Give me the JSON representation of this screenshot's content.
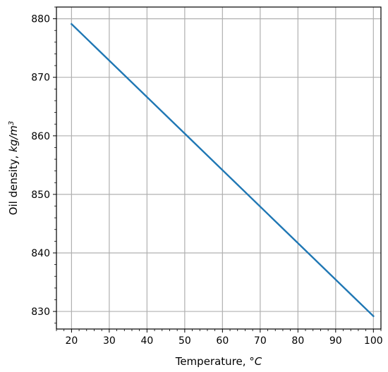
{
  "chart_data": {
    "type": "line",
    "title": "",
    "xlabel": {
      "prefix": "Temperature, ",
      "unit": "°C"
    },
    "ylabel": {
      "prefix": "Oil density, ",
      "unit_base": "kg/m",
      "unit_exp": "3"
    },
    "xlim": [
      16,
      102
    ],
    "ylim": [
      827,
      882
    ],
    "x_ticks": [
      "20",
      "30",
      "40",
      "50",
      "60",
      "70",
      "80",
      "90",
      "100"
    ],
    "y_ticks": [
      "830",
      "840",
      "850",
      "860",
      "870",
      "880"
    ],
    "grid": true,
    "series": [
      {
        "color": "#1f77b4",
        "x": [
          20,
          100
        ],
        "y": [
          879.1,
          829.2
        ]
      }
    ]
  }
}
